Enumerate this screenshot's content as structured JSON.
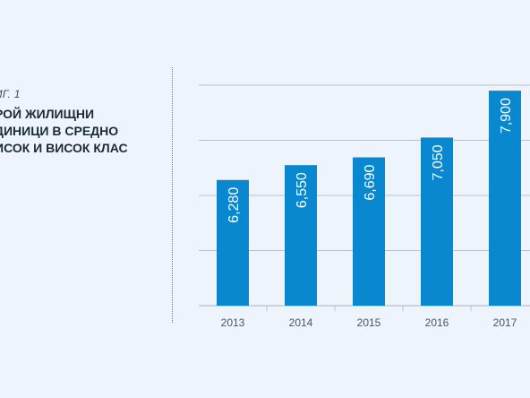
{
  "caption": {
    "fig_label": "ИГ. 1",
    "title_lines": [
      "РОЙ ЖИЛИЩНИ",
      "ДИНИЦИ В СРЕДНО",
      "ИСОК И ВИСОК КЛАС"
    ]
  },
  "colors": {
    "bar": "#0a88cf",
    "grid": "#b8c2cc",
    "bar_label": "#ffffff",
    "tick_label": "#4a5663",
    "background": "#eef4fb"
  },
  "chart_data": {
    "type": "bar",
    "categories": [
      "2013",
      "2014",
      "2015",
      "2016",
      "2017"
    ],
    "values": [
      6280,
      6550,
      6690,
      7050,
      7900
    ],
    "value_labels": [
      "6,280",
      "6,550",
      "6,690",
      "7,050",
      "7,900"
    ],
    "title": "",
    "xlabel": "",
    "ylabel": "",
    "ylim": [
      4000,
      8000
    ],
    "grid": true,
    "legend": "none"
  }
}
